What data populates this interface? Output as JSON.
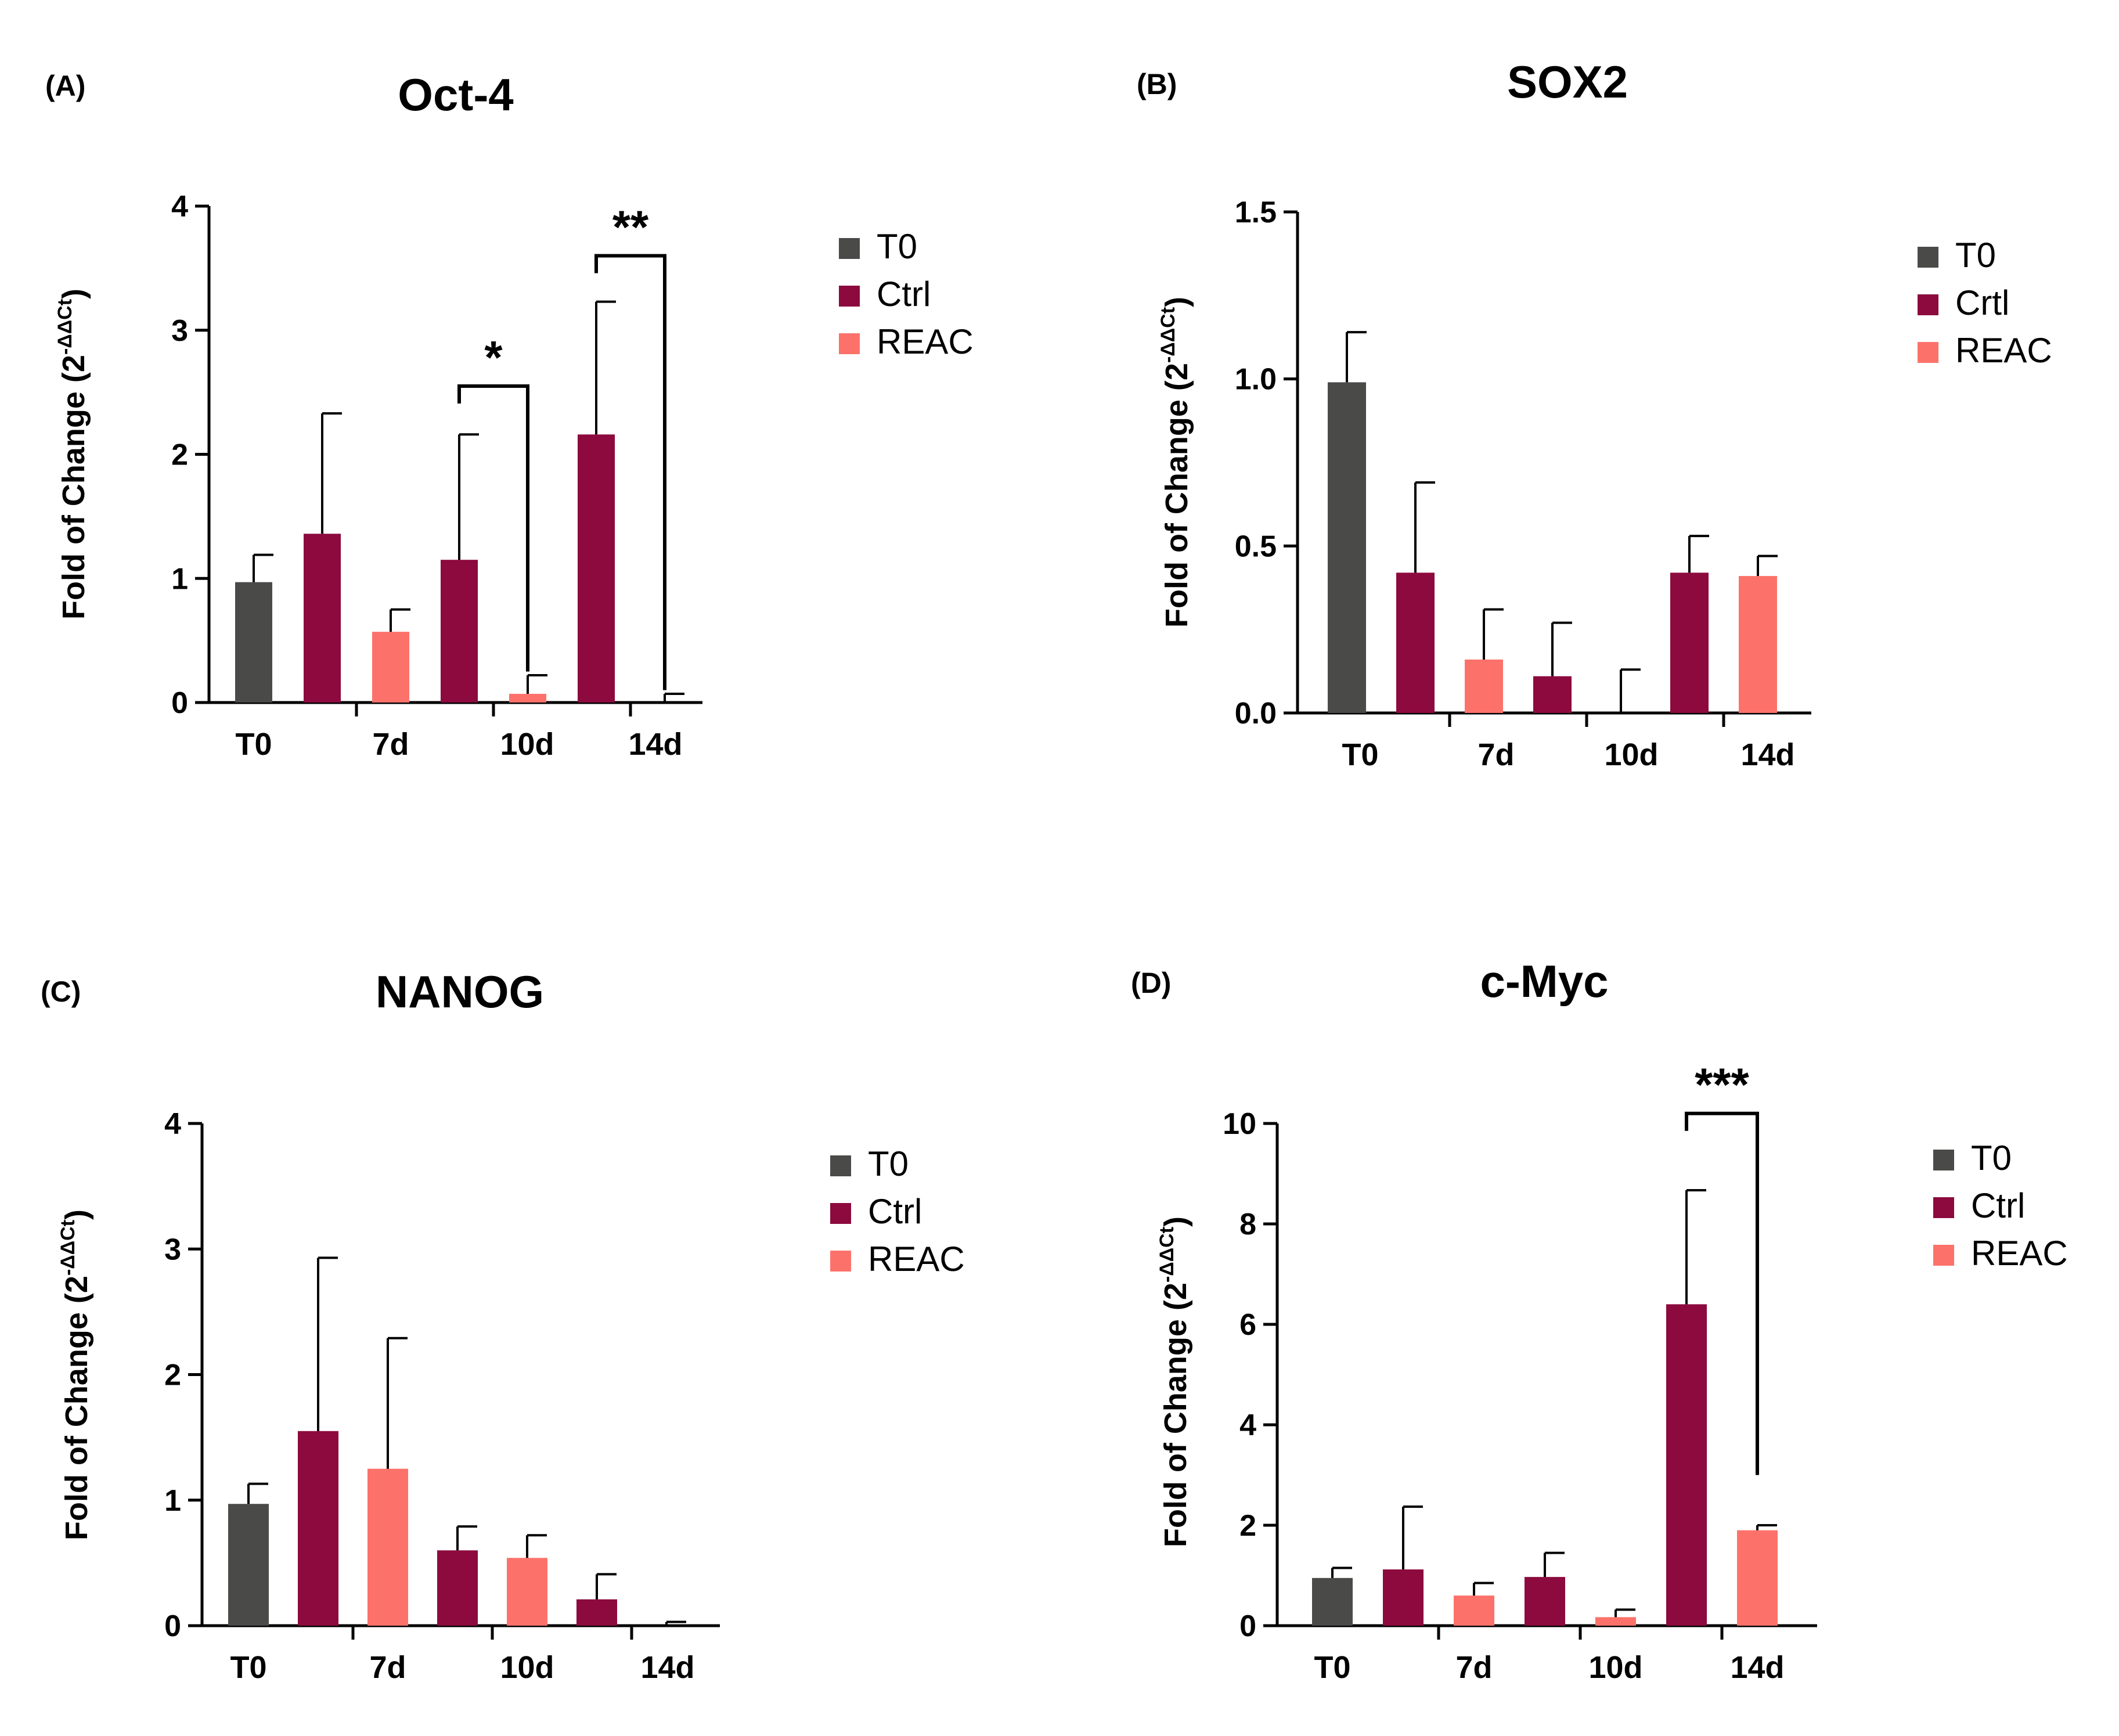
{
  "colors": {
    "T0": "#4a4a48",
    "Ctrl": "#8c0a3e",
    "REAC": "#fc726a"
  },
  "chart_data": [
    {
      "panel": "(A)",
      "type": "bar",
      "title": "Oct-4",
      "ylabel": "Fold of Change (2",
      "ylabel_sup": "-ΔΔCt",
      "ylabel_close": ")",
      "ylim": [
        0,
        4
      ],
      "yticks": [
        0,
        1,
        2,
        3,
        4
      ],
      "ytick_labels": [
        "0",
        "1",
        "2",
        "3",
        "4"
      ],
      "categories": [
        "T0",
        "7d",
        "10d",
        "14d"
      ],
      "legend": [
        "T0",
        "Ctrl",
        "REAC"
      ],
      "bars": [
        {
          "group": "T0",
          "value": 0.97,
          "error": 0.22
        },
        {
          "group": "Ctrl",
          "value": 1.36,
          "error": 0.97
        },
        {
          "group": "REAC",
          "value": 0.57,
          "error": 0.18
        },
        {
          "group": "Ctrl",
          "value": 1.15,
          "error": 1.01
        },
        {
          "group": "REAC",
          "value": 0.07,
          "error": 0.15
        },
        {
          "group": "Ctrl",
          "value": 2.16,
          "error": 1.07
        },
        {
          "group": "REAC",
          "value": 0.0,
          "error": 0.07
        }
      ],
      "significance": [
        {
          "from": 3,
          "to": 4,
          "label": "*",
          "level": 2.55,
          "drop_to": 0.25
        },
        {
          "from": 5,
          "to": 6,
          "label": "**",
          "level": 3.6,
          "drop_to": 0.1
        }
      ]
    },
    {
      "panel": "(B)",
      "type": "bar",
      "title": "SOX2",
      "ylabel": "Fold of Change (2",
      "ylabel_sup": "-ΔΔCt",
      "ylabel_close": ")",
      "ylim": [
        0,
        1.5
      ],
      "yticks": [
        0,
        0.5,
        1.0,
        1.5
      ],
      "ytick_labels": [
        "0.0",
        "0.5",
        "1.0",
        "1.5"
      ],
      "categories": [
        "T0",
        "7d",
        "10d",
        "14d"
      ],
      "legend": [
        "T0",
        "Crtl",
        "REAC"
      ],
      "bars": [
        {
          "group": "T0",
          "value": 0.99,
          "error": 0.15
        },
        {
          "group": "Ctrl",
          "value": 0.42,
          "error": 0.27
        },
        {
          "group": "REAC",
          "value": 0.16,
          "error": 0.15
        },
        {
          "group": "Ctrl",
          "value": 0.11,
          "error": 0.16
        },
        {
          "group": "REAC",
          "value": 0.0,
          "error": 0.13
        },
        {
          "group": "Ctrl",
          "value": 0.42,
          "error": 0.11
        },
        {
          "group": "REAC",
          "value": 0.41,
          "error": 0.06
        }
      ],
      "significance": []
    },
    {
      "panel": "(C)",
      "type": "bar",
      "title": "NANOG",
      "ylabel": "Fold of Change (2",
      "ylabel_sup": "-ΔΔCt",
      "ylabel_close": ")",
      "ylim": [
        0,
        4
      ],
      "yticks": [
        0,
        1,
        2,
        3,
        4
      ],
      "ytick_labels": [
        "0",
        "1",
        "2",
        "3",
        "4"
      ],
      "categories": [
        "T0",
        "7d",
        "10d",
        "14d"
      ],
      "legend": [
        "T0",
        "Ctrl",
        "REAC"
      ],
      "bars": [
        {
          "group": "T0",
          "value": 0.97,
          "error": 0.16
        },
        {
          "group": "Ctrl",
          "value": 1.55,
          "error": 1.38
        },
        {
          "group": "REAC",
          "value": 1.25,
          "error": 1.04
        },
        {
          "group": "Ctrl",
          "value": 0.6,
          "error": 0.19
        },
        {
          "group": "REAC",
          "value": 0.54,
          "error": 0.18
        },
        {
          "group": "Ctrl",
          "value": 0.21,
          "error": 0.2
        },
        {
          "group": "REAC",
          "value": 0.0,
          "error": 0.03
        }
      ],
      "significance": []
    },
    {
      "panel": "(D)",
      "type": "bar",
      "title": "c-Myc",
      "ylabel": "Fold of Change (2",
      "ylabel_sup": "-ΔΔCt",
      "ylabel_close": ")",
      "ylim": [
        0,
        10
      ],
      "yticks": [
        0,
        2,
        4,
        6,
        8,
        10
      ],
      "ytick_labels": [
        "0",
        "2",
        "4",
        "6",
        "8",
        "10"
      ],
      "categories": [
        "T0",
        "7d",
        "10d",
        "14d"
      ],
      "legend": [
        "T0",
        "Ctrl",
        "REAC"
      ],
      "bars": [
        {
          "group": "T0",
          "value": 0.95,
          "error": 0.2
        },
        {
          "group": "Ctrl",
          "value": 1.12,
          "error": 1.25
        },
        {
          "group": "REAC",
          "value": 0.6,
          "error": 0.25
        },
        {
          "group": "Ctrl",
          "value": 0.97,
          "error": 0.48
        },
        {
          "group": "REAC",
          "value": 0.17,
          "error": 0.15
        },
        {
          "group": "Ctrl",
          "value": 6.4,
          "error": 2.27
        },
        {
          "group": "REAC",
          "value": 1.9,
          "error": 0.1
        }
      ],
      "significance": [
        {
          "from": 5,
          "to": 6,
          "label": "***",
          "level": 10.2,
          "drop_to": 3.0
        }
      ]
    }
  ]
}
